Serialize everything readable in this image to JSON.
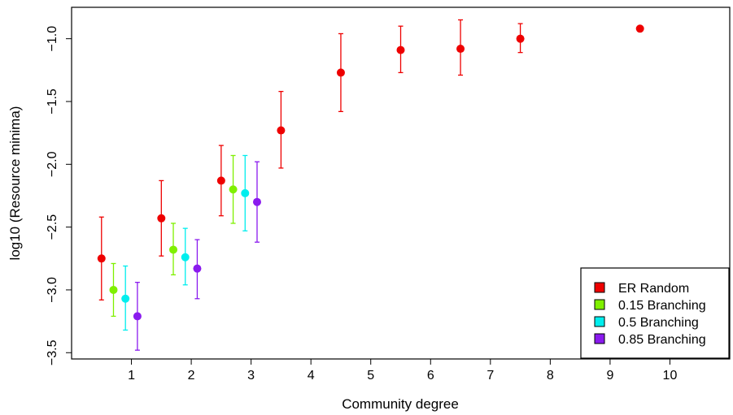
{
  "chart_data": {
    "type": "scatter",
    "title": "",
    "xlabel": "Community degree",
    "ylabel": "log10 (Resource minima)",
    "xlim": [
      0,
      11
    ],
    "ylim": [
      -3.55,
      -0.75
    ],
    "x_ticks": [
      1,
      2,
      3,
      4,
      5,
      6,
      7,
      8,
      9,
      10
    ],
    "x_tick_labels": [
      "1",
      "2",
      "3",
      "4",
      "5",
      "6",
      "7",
      "8",
      "9",
      "10"
    ],
    "y_ticks": [
      -1.0,
      -1.5,
      -2.0,
      -2.5,
      -3.0,
      -3.5
    ],
    "y_tick_labels": [
      "−1.0",
      "−1.5",
      "−2.0",
      "−2.5",
      "−3.0",
      "−3.5"
    ],
    "grid": false,
    "error_bars": true,
    "legend_position": "bottom-right",
    "series": [
      {
        "name": "ER Random",
        "color": "#ee0000",
        "x": [
          0.5,
          1.5,
          2.5,
          3.5,
          4.5,
          5.5,
          6.5,
          7.5,
          9.5
        ],
        "y": [
          -2.75,
          -2.43,
          -2.13,
          -1.73,
          -1.27,
          -1.09,
          -1.08,
          -1.0,
          -0.92
        ],
        "y_low": [
          -3.08,
          -2.73,
          -2.41,
          -2.03,
          -1.58,
          -1.27,
          -1.29,
          -1.11,
          -0.92
        ],
        "y_high": [
          -2.42,
          -2.13,
          -1.85,
          -1.42,
          -0.96,
          -0.9,
          -0.85,
          -0.88,
          -0.92
        ]
      },
      {
        "name": "0.15 Branching",
        "color": "#7ff000",
        "x": [
          0.7,
          1.7,
          2.7
        ],
        "y": [
          -3.0,
          -2.68,
          -2.2
        ],
        "y_low": [
          -3.21,
          -2.88,
          -2.47
        ],
        "y_high": [
          -2.79,
          -2.47,
          -1.93
        ]
      },
      {
        "name": "0.5 Branching",
        "color": "#00eeee",
        "x": [
          0.9,
          1.9,
          2.9
        ],
        "y": [
          -3.07,
          -2.74,
          -2.23
        ],
        "y_low": [
          -3.32,
          -2.96,
          -2.53
        ],
        "y_high": [
          -2.81,
          -2.51,
          -1.93
        ]
      },
      {
        "name": "0.85 Branching",
        "color": "#8a1aee",
        "x": [
          1.1,
          2.1,
          3.1
        ],
        "y": [
          -3.21,
          -2.83,
          -2.3
        ],
        "y_low": [
          -3.48,
          -3.07,
          -2.62
        ],
        "y_high": [
          -2.94,
          -2.6,
          -1.98
        ]
      }
    ]
  }
}
